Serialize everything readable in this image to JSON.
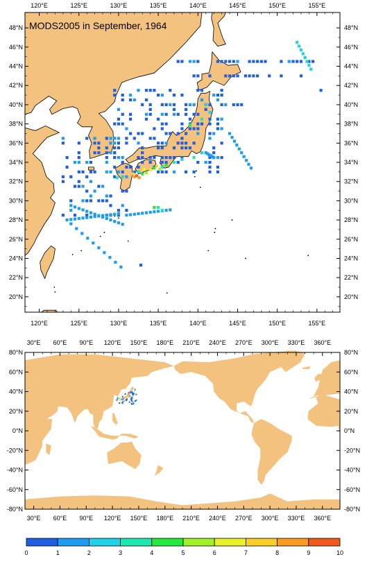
{
  "title": "MODS2005 in September, 1964",
  "japan_map": {
    "lon_labels": [
      "120°E",
      "125°E",
      "130°E",
      "135°E",
      "140°E",
      "145°E",
      "150°E",
      "155°E"
    ],
    "lat_labels": [
      "48°N",
      "46°N",
      "44°N",
      "42°N",
      "40°N",
      "38°N",
      "36°N",
      "34°N",
      "32°N",
      "30°N",
      "28°N",
      "26°N",
      "24°N",
      "22°N",
      "20°N"
    ],
    "land_color": "#f4c27f",
    "ocean_color": "#ffffff"
  },
  "world_map": {
    "lon_labels": [
      "30°E",
      "60°E",
      "90°E",
      "120°E",
      "150°E",
      "180°E",
      "210°E",
      "240°E",
      "270°E",
      "300°E",
      "330°E",
      "360°E"
    ],
    "lat_labels": [
      "80°N",
      "60°N",
      "40°N",
      "20°N",
      "0°N",
      "-20°N",
      "-40°N",
      "-60°N",
      "-80°N"
    ],
    "land_color": "#f4c27f"
  },
  "colorbar": {
    "labels": [
      "0",
      "1",
      "2",
      "3",
      "4",
      "5",
      "6",
      "7",
      "8",
      "9",
      "10"
    ],
    "colors": [
      "#1f5fe0",
      "#1e9cf0",
      "#22d0e8",
      "#1ee8b0",
      "#27e83c",
      "#9ef02a",
      "#e8f02a",
      "#f8cf28",
      "#f89a24",
      "#f05a1e"
    ]
  }
}
